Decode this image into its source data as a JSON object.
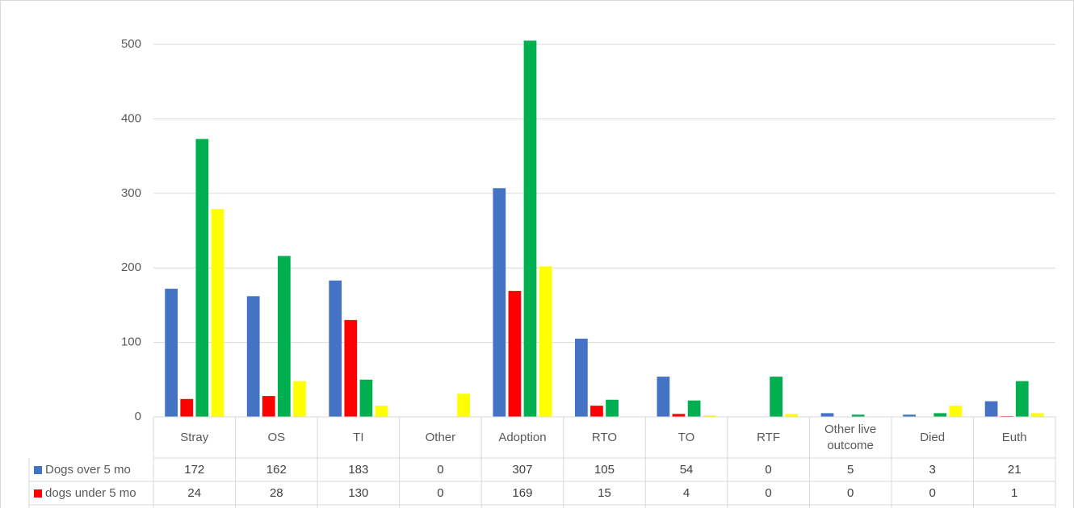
{
  "chart_data": {
    "type": "bar",
    "categories": [
      "Stray",
      "OS",
      "TI",
      "Other",
      "Adoption",
      "RTO",
      "TO",
      "RTF",
      "Other live outcome",
      "Died",
      "Euth"
    ],
    "series": [
      {
        "name": "Dogs over 5 mo",
        "color": "#4472c4",
        "values": [
          172,
          162,
          183,
          0,
          307,
          105,
          54,
          0,
          5,
          3,
          21
        ]
      },
      {
        "name": "dogs under 5 mo",
        "color": "#ff0000",
        "values": [
          24,
          28,
          130,
          0,
          169,
          15,
          4,
          0,
          0,
          0,
          1
        ]
      },
      {
        "color": "#00b050",
        "values": [
          373,
          216,
          50,
          0,
          505,
          23,
          22,
          54,
          3,
          5,
          48
        ]
      },
      {
        "color": "#ffff00",
        "values": [
          279,
          48,
          15,
          31,
          202,
          0,
          2,
          4,
          0,
          15,
          5
        ]
      }
    ],
    "ylim": [
      0,
      500
    ],
    "yticks": [
      0,
      100,
      200,
      300,
      400,
      500
    ],
    "grid": true
  }
}
